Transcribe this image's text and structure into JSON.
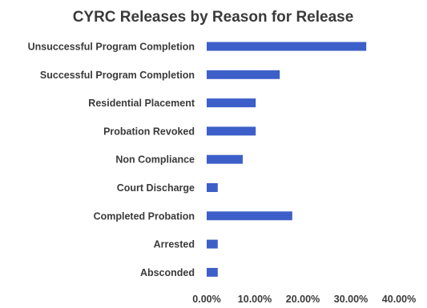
{
  "chart_data": {
    "type": "bar",
    "orientation": "horizontal",
    "title": "CYRC Releases by Reason for Release",
    "xlabel": "",
    "ylabel": "",
    "categories": [
      "Unsuccessful Program Completion",
      "Successful Program Completion",
      "Residential Placement",
      "Probation Revoked",
      "Non Compliance",
      "Court Discharge",
      "Completed Probation",
      "Arrested",
      "Absconded"
    ],
    "values": [
      0.332,
      0.152,
      0.102,
      0.102,
      0.075,
      0.023,
      0.178,
      0.023,
      0.023
    ],
    "xlim": [
      0,
      0.4
    ],
    "xticks": [
      "0.00%",
      "10.00%",
      "20.00%",
      "30.00%",
      "40.00%"
    ],
    "grid": false,
    "legend": "none",
    "bar_color": "#3d5fc9"
  }
}
